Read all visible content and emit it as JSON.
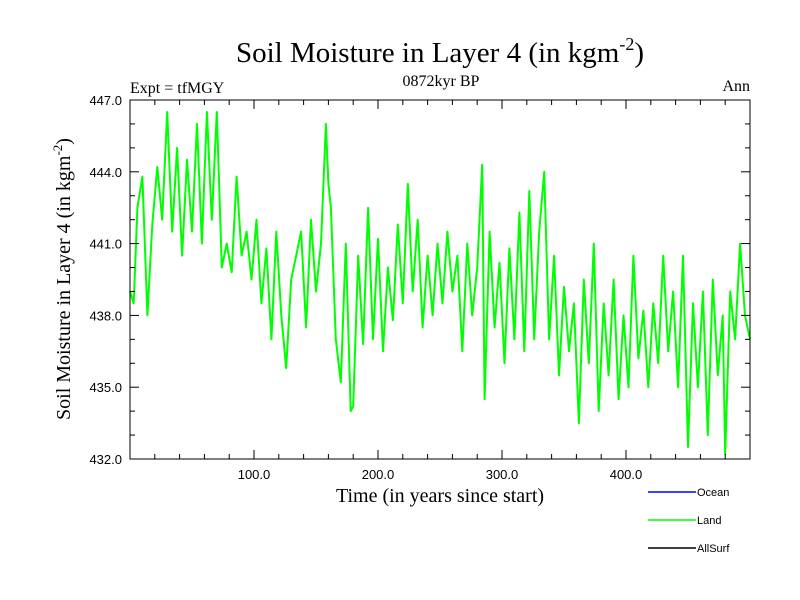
{
  "chart_data": {
    "type": "line",
    "title": "Soil Moisture in Layer 4 (in kgm",
    "title_sup": "-2",
    "title_close": ")",
    "subtitle": "0872kyr BP",
    "left_label": "Expt = tfMGY",
    "right_label": "Ann",
    "xlabel": "Time (in years since start)",
    "ylabel": "Soil Moisture in Layer 4 (in kgm",
    "ylabel_sup": "-2",
    "ylabel_close": ")",
    "xlim": [
      0,
      500
    ],
    "ylim": [
      432.0,
      447.0
    ],
    "x_ticks": [
      100,
      200,
      300,
      400
    ],
    "x_tick_labels": [
      "100.0",
      "200.0",
      "300.0",
      "400.0"
    ],
    "y_ticks": [
      432,
      435,
      438,
      441,
      444,
      447
    ],
    "y_tick_labels": [
      "432.0",
      "435.0",
      "438.0",
      "441.0",
      "444.0",
      "447.0"
    ],
    "series": [
      {
        "name": "Ocean",
        "color": "#0000ff",
        "values": []
      },
      {
        "name": "Land",
        "color": "#00ff00",
        "x": [
          0,
          3,
          6,
          10,
          14,
          18,
          22,
          26,
          30,
          34,
          38,
          42,
          46,
          50,
          54,
          58,
          62,
          66,
          70,
          74,
          78,
          82,
          86,
          90,
          94,
          98,
          102,
          106,
          110,
          114,
          118,
          122,
          126,
          130,
          134,
          138,
          142,
          146,
          150,
          154,
          158,
          160,
          162,
          166,
          170,
          174,
          178,
          180,
          184,
          188,
          192,
          196,
          200,
          204,
          208,
          212,
          216,
          220,
          224,
          228,
          232,
          236,
          240,
          244,
          248,
          252,
          256,
          260,
          264,
          268,
          272,
          276,
          280,
          284,
          286,
          290,
          294,
          298,
          302,
          306,
          310,
          314,
          318,
          322,
          326,
          330,
          334,
          338,
          342,
          346,
          350,
          354,
          358,
          362,
          366,
          370,
          374,
          378,
          382,
          386,
          390,
          394,
          398,
          402,
          406,
          410,
          414,
          418,
          422,
          426,
          430,
          434,
          438,
          442,
          446,
          450,
          454,
          458,
          462,
          466,
          470,
          474,
          478,
          480,
          484,
          488,
          492,
          496,
          500
        ],
        "values": [
          439.0,
          438.5,
          442.5,
          443.8,
          438.0,
          441.8,
          444.2,
          442.0,
          446.5,
          441.5,
          445.0,
          440.5,
          444.5,
          441.5,
          446.0,
          441.0,
          446.5,
          442.0,
          446.5,
          440.0,
          441.0,
          439.8,
          443.8,
          440.5,
          441.5,
          439.5,
          442.0,
          438.5,
          440.8,
          437.0,
          441.5,
          438.0,
          435.8,
          439.5,
          440.5,
          441.5,
          437.5,
          442.0,
          439.0,
          441.0,
          446.0,
          443.5,
          442.5,
          437.0,
          435.2,
          441.0,
          434.0,
          434.2,
          440.5,
          436.8,
          442.5,
          437.0,
          441.2,
          436.5,
          440.0,
          437.8,
          441.8,
          438.5,
          443.5,
          439.0,
          442.0,
          437.5,
          440.5,
          438.0,
          441.0,
          438.5,
          441.5,
          439.0,
          440.5,
          436.5,
          441.0,
          438.0,
          440.0,
          444.3,
          434.5,
          441.5,
          437.5,
          440.2,
          436.0,
          440.8,
          437.0,
          442.3,
          436.5,
          443.2,
          437.0,
          441.5,
          444.0,
          437.0,
          440.5,
          435.5,
          439.2,
          436.5,
          438.5,
          433.5,
          439.5,
          436.0,
          441.0,
          434.0,
          438.5,
          435.5,
          439.5,
          434.5,
          438.0,
          435.0,
          440.5,
          436.2,
          438.2,
          435.0,
          438.5,
          436.0,
          440.5,
          436.5,
          439.0,
          435.0,
          440.5,
          432.5,
          438.5,
          435.0,
          439.0,
          433.0,
          439.5,
          435.5,
          438.0,
          432.2,
          439.0,
          437.0,
          441.0,
          438.0,
          437.0
        ]
      },
      {
        "name": "AllSurf",
        "color": "#000000",
        "values": []
      }
    ],
    "legend_position": "bottom-right",
    "grid": false
  }
}
